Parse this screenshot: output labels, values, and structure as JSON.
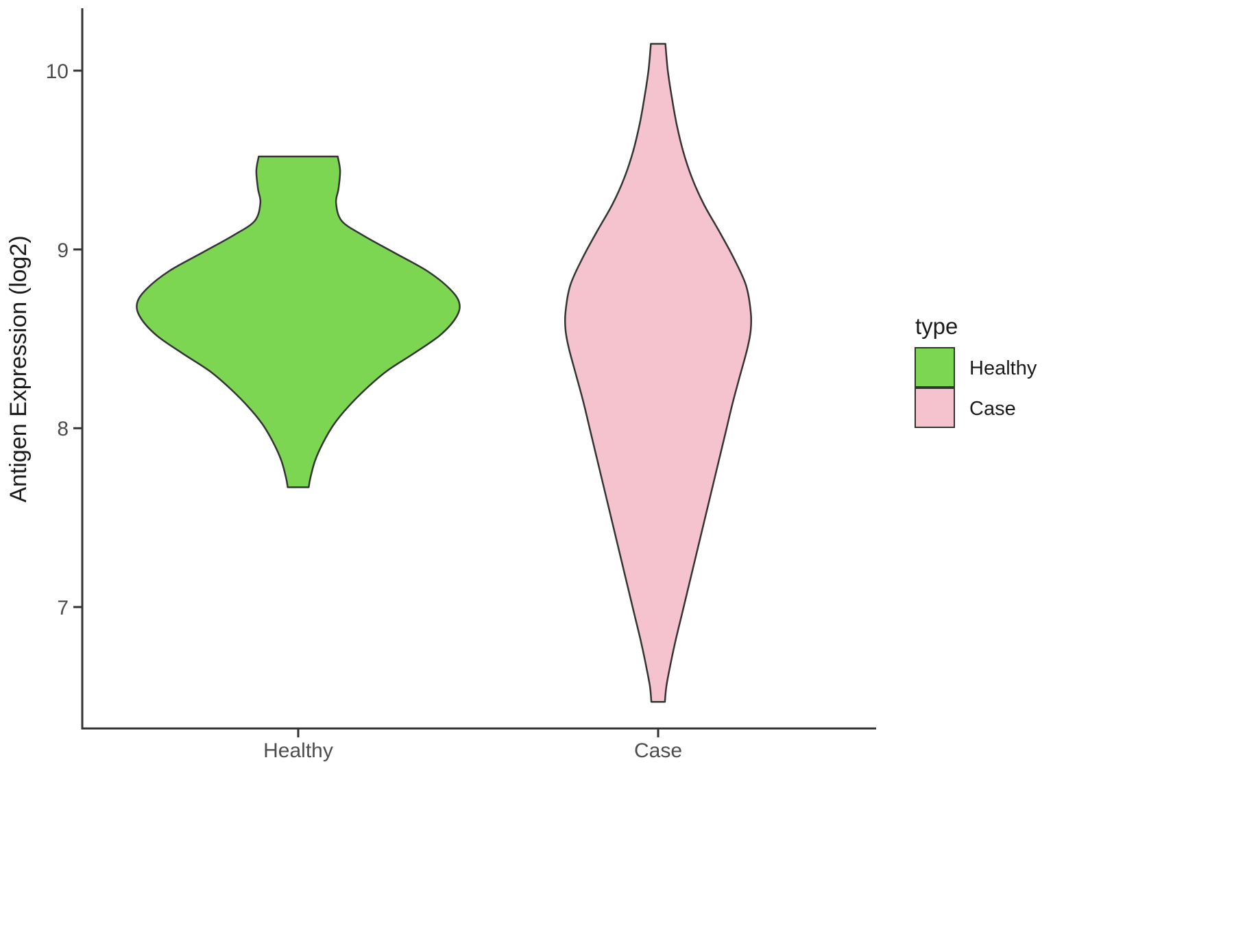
{
  "chart_data": {
    "type": "violin",
    "title": "",
    "xlabel": "",
    "ylabel": "Antigen Expression (log2)",
    "categories": [
      "Healthy",
      "Case"
    ],
    "ylim": [
      6.35,
      10.35
    ],
    "yticks": [
      10,
      9,
      8,
      7
    ],
    "ytick_labels": [
      "10",
      "9",
      "8",
      "7"
    ],
    "grid": "off",
    "legend": {
      "title": "type",
      "position": "right",
      "entries": [
        {
          "label": "Healthy",
          "color": "#7CD652"
        },
        {
          "label": "Case",
          "color": "#F5C3CE"
        }
      ]
    },
    "axis_color": "#333333",
    "series": [
      {
        "name": "Healthy",
        "fill": "#7CD652",
        "outline": "#333333",
        "value_range": [
          7.67,
          9.52
        ],
        "profile": [
          [
            9.52,
            0.245
          ],
          [
            9.44,
            0.26
          ],
          [
            9.34,
            0.25
          ],
          [
            9.26,
            0.235
          ],
          [
            9.16,
            0.27
          ],
          [
            9.08,
            0.4
          ],
          [
            8.98,
            0.6
          ],
          [
            8.88,
            0.8
          ],
          [
            8.78,
            0.94
          ],
          [
            8.7,
            1.0
          ],
          [
            8.62,
            0.98
          ],
          [
            8.52,
            0.88
          ],
          [
            8.42,
            0.72
          ],
          [
            8.32,
            0.55
          ],
          [
            8.22,
            0.42
          ],
          [
            8.12,
            0.31
          ],
          [
            8.02,
            0.22
          ],
          [
            7.92,
            0.155
          ],
          [
            7.82,
            0.105
          ],
          [
            7.72,
            0.075
          ],
          [
            7.67,
            0.065
          ]
        ]
      },
      {
        "name": "Case",
        "fill": "#F5C3CE",
        "outline": "#333333",
        "value_range": [
          6.47,
          10.15
        ],
        "profile": [
          [
            10.15,
            0.045
          ],
          [
            10.0,
            0.06
          ],
          [
            9.85,
            0.085
          ],
          [
            9.7,
            0.115
          ],
          [
            9.55,
            0.155
          ],
          [
            9.4,
            0.21
          ],
          [
            9.25,
            0.285
          ],
          [
            9.1,
            0.38
          ],
          [
            8.95,
            0.47
          ],
          [
            8.8,
            0.545
          ],
          [
            8.65,
            0.575
          ],
          [
            8.55,
            0.575
          ],
          [
            8.45,
            0.555
          ],
          [
            8.3,
            0.51
          ],
          [
            8.15,
            0.465
          ],
          [
            8.0,
            0.425
          ],
          [
            7.85,
            0.385
          ],
          [
            7.7,
            0.345
          ],
          [
            7.55,
            0.305
          ],
          [
            7.4,
            0.265
          ],
          [
            7.25,
            0.225
          ],
          [
            7.1,
            0.185
          ],
          [
            6.95,
            0.145
          ],
          [
            6.8,
            0.105
          ],
          [
            6.65,
            0.07
          ],
          [
            6.55,
            0.05
          ],
          [
            6.47,
            0.042
          ]
        ]
      }
    ]
  }
}
